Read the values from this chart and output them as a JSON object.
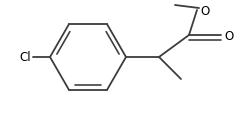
{
  "background": "#ffffff",
  "line_color": "#3d3d3d",
  "line_width": 1.3,
  "text_color": "#000000",
  "font_size": 8.5,
  "figsize": [
    2.42,
    1.15
  ],
  "dpi": 100,
  "xlim": [
    0,
    242
  ],
  "ylim": [
    0,
    115
  ]
}
